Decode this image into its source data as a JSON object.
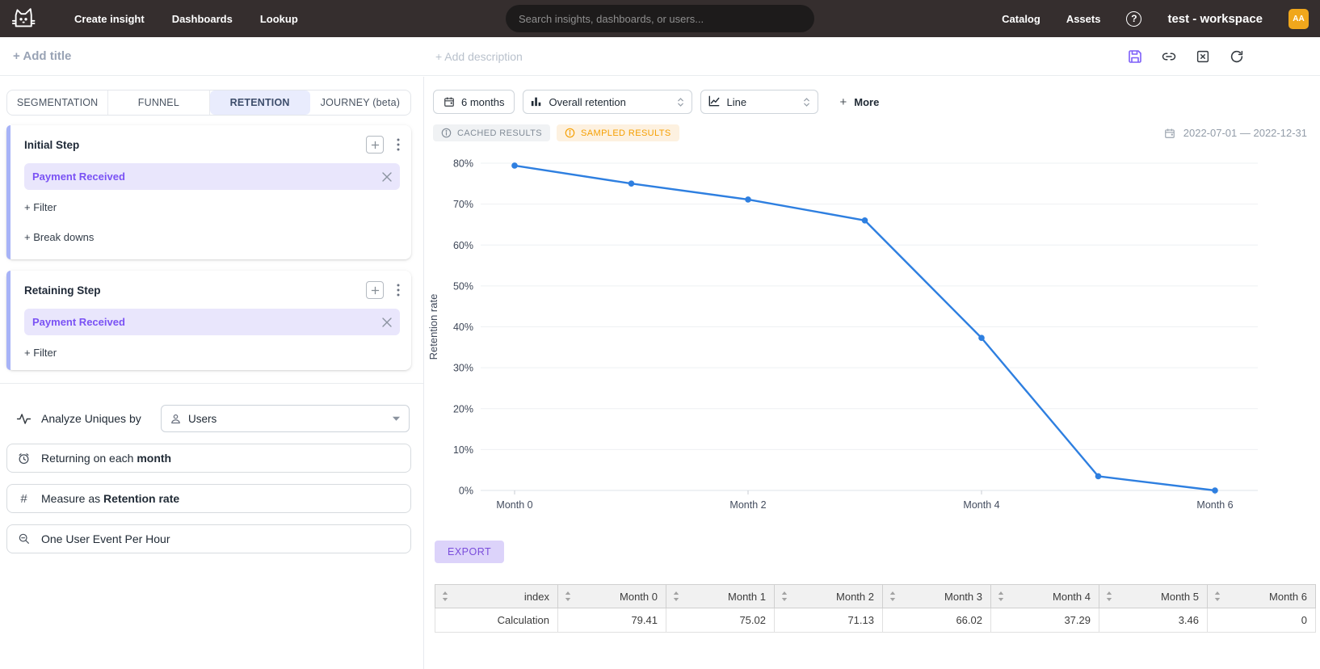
{
  "navbar": {
    "links": [
      "Create insight",
      "Dashboards",
      "Lookup"
    ],
    "search_placeholder": "Search insights, dashboards, or users...",
    "right_links": [
      "Catalog",
      "Assets"
    ],
    "workspace": "test - workspace",
    "avatar_initials": "AA",
    "avatar_color": "#f0a71c"
  },
  "titlebar": {
    "add_title": "+ Add title",
    "add_description": "+ Add description"
  },
  "sidebar": {
    "tabs": [
      {
        "label": "SEGMENTATION",
        "active": false
      },
      {
        "label": "FUNNEL",
        "active": false
      },
      {
        "label": "RETENTION",
        "active": true
      },
      {
        "label": "JOURNEY (beta)",
        "active": false
      }
    ],
    "initial_step": {
      "title": "Initial Step",
      "event": "Payment Received",
      "filter_label": "+ Filter",
      "breakdown_label": "+ Break downs"
    },
    "retaining_step": {
      "title": "Retaining Step",
      "event": "Payment Received",
      "filter_label": "+ Filter"
    },
    "analyze": {
      "label": "Analyze Uniques by",
      "value": "Users"
    },
    "returning": {
      "prefix": "Returning on each ",
      "bold": "month"
    },
    "measure": {
      "prefix": "Measure as ",
      "bold": "Retention rate"
    },
    "dedupe_label": "One User Event Per Hour"
  },
  "toolbar": {
    "date_range_button": "6 months",
    "metric_select": "Overall retention",
    "chart_type_select": "Line",
    "more": {
      "plus": "+",
      "label": "More"
    }
  },
  "status": {
    "cached": "CACHED RESULTS",
    "sampled": "SAMPLED RESULTS",
    "date_range": "2022-07-01 — 2022-12-31"
  },
  "chart_data": {
    "type": "line",
    "x": [
      "Month 0",
      "Month 1",
      "Month 2",
      "Month 3",
      "Month 4",
      "Month 5",
      "Month 6"
    ],
    "values": [
      79.41,
      75.02,
      71.13,
      66.02,
      37.29,
      3.46,
      0
    ],
    "series_name": "Overall retention",
    "ylabel": "Retention rate",
    "y_suffix": "%",
    "ylim": [
      0,
      84
    ],
    "yticks": [
      0,
      10,
      20,
      30,
      40,
      50,
      60,
      70,
      80
    ],
    "xticks_shown": [
      "Month 0",
      "Month 2",
      "Month 4",
      "Month 6"
    ],
    "grid": true,
    "legend": false,
    "line_color": "#2e7fe0"
  },
  "export_label": "EXPORT",
  "table": {
    "columns": [
      "index",
      "Month 0",
      "Month 1",
      "Month 2",
      "Month 3",
      "Month 4",
      "Month 5",
      "Month 6"
    ],
    "rows": [
      [
        "Calculation",
        "79.41",
        "75.02",
        "71.13",
        "66.02",
        "37.29",
        "3.46",
        "0"
      ]
    ]
  },
  "icons": {
    "hash": "#",
    "help": "?"
  }
}
